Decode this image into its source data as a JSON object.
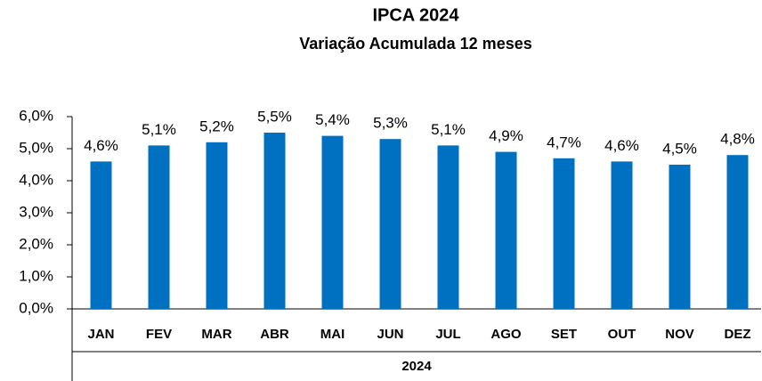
{
  "chart_data": {
    "type": "bar",
    "title": "IPCA 2024",
    "subtitle": "Variação Acumulada 12 meses",
    "categories": [
      "JAN",
      "FEV",
      "MAR",
      "ABR",
      "MAI",
      "JUN",
      "JUL",
      "AGO",
      "SET",
      "OUT",
      "NOV",
      "DEZ"
    ],
    "group_label": "2024",
    "values": [
      4.6,
      5.1,
      5.2,
      5.5,
      5.4,
      5.3,
      5.1,
      4.9,
      4.7,
      4.6,
      4.5,
      4.8
    ],
    "value_labels": [
      "4,6%",
      "5,1%",
      "5,2%",
      "5,5%",
      "5,4%",
      "5,3%",
      "5,1%",
      "4,9%",
      "4,7%",
      "4,6%",
      "4,5%",
      "4,8%"
    ],
    "color": "#0070c0",
    "ylim": [
      0,
      6
    ],
    "yticks": [
      {
        "value": 0,
        "label": "0,0%"
      },
      {
        "value": 1,
        "label": "1,0%"
      },
      {
        "value": 2,
        "label": "2,0%"
      },
      {
        "value": 3,
        "label": "3,0%"
      },
      {
        "value": 4,
        "label": "4,0%"
      },
      {
        "value": 5,
        "label": "5,0%"
      },
      {
        "value": 6,
        "label": "6,0%"
      }
    ],
    "grid": false
  }
}
